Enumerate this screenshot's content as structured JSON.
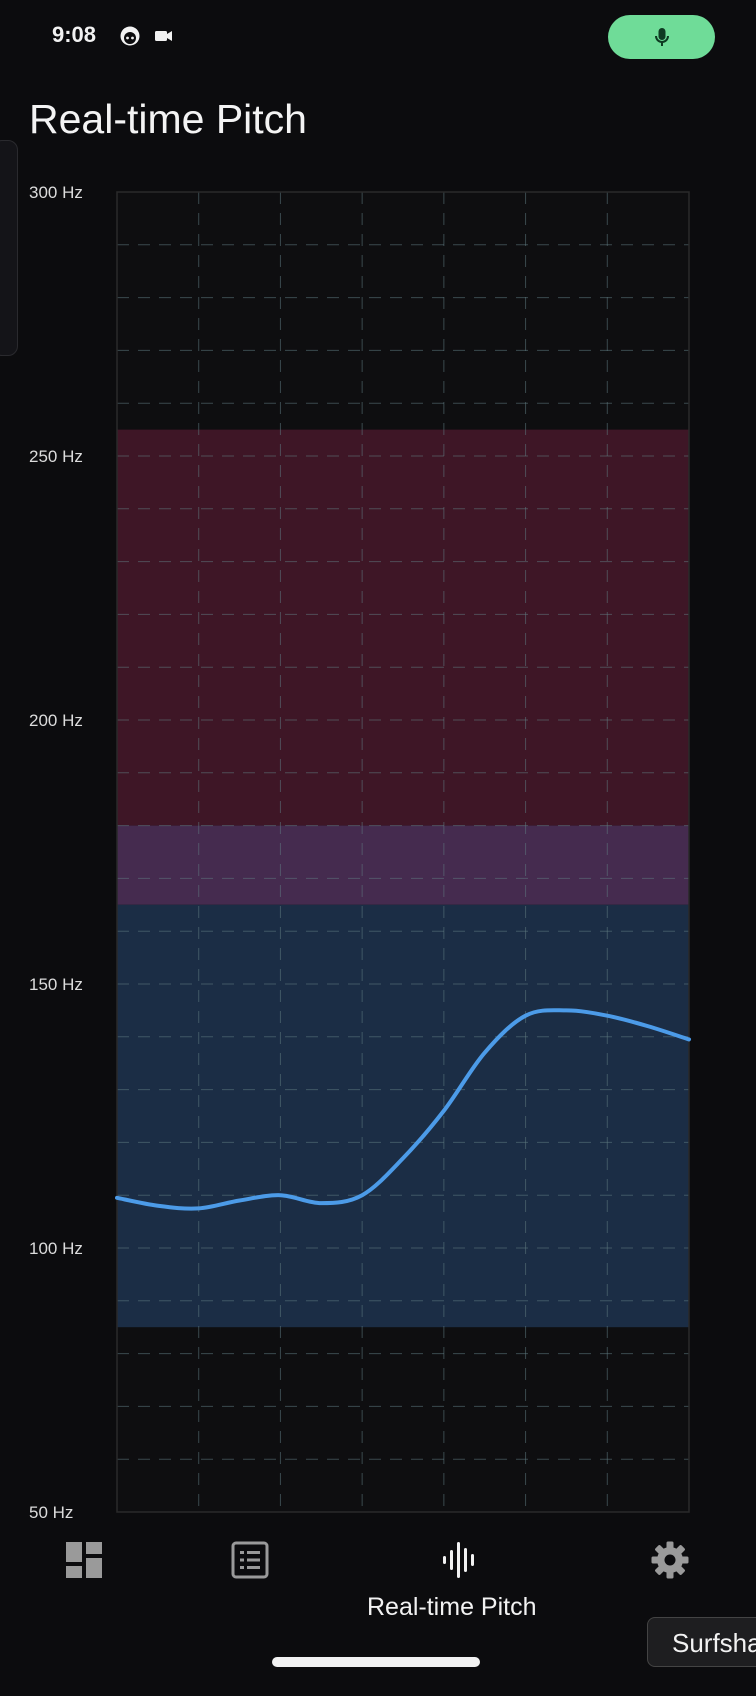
{
  "status_bar": {
    "time": "9:08"
  },
  "page": {
    "title": "Real-time Pitch"
  },
  "chart_data": {
    "type": "line",
    "title": "",
    "xlabel": "",
    "ylabel": "",
    "ylim": [
      50,
      300
    ],
    "y_ticks": [
      300,
      250,
      200,
      150,
      100,
      50
    ],
    "y_tick_labels": [
      "300 Hz",
      "250 Hz",
      "200 Hz",
      "150 Hz",
      "100 Hz",
      "50 Hz"
    ],
    "y_unit": "Hz",
    "grid": true,
    "bands": [
      {
        "from": 180,
        "to": 255,
        "color": "#3e1626"
      },
      {
        "from": 165,
        "to": 180,
        "color": "#452b4f"
      },
      {
        "from": 85,
        "to": 165,
        "color": "#1b2d45"
      }
    ],
    "series": [
      {
        "color": "#4c9be8",
        "values": [
          109.5,
          108,
          107.5,
          109,
          110,
          108.5,
          110,
          117,
          126,
          137,
          144,
          145,
          144,
          142,
          139.5
        ]
      }
    ]
  },
  "nav": {
    "items": [
      {
        "icon": "dashboard-icon"
      },
      {
        "icon": "list-icon"
      },
      {
        "icon": "waveform-icon",
        "label": "Real-time Pitch"
      },
      {
        "icon": "gear-icon"
      }
    ]
  },
  "tooltip": {
    "text": "Surfshark"
  }
}
